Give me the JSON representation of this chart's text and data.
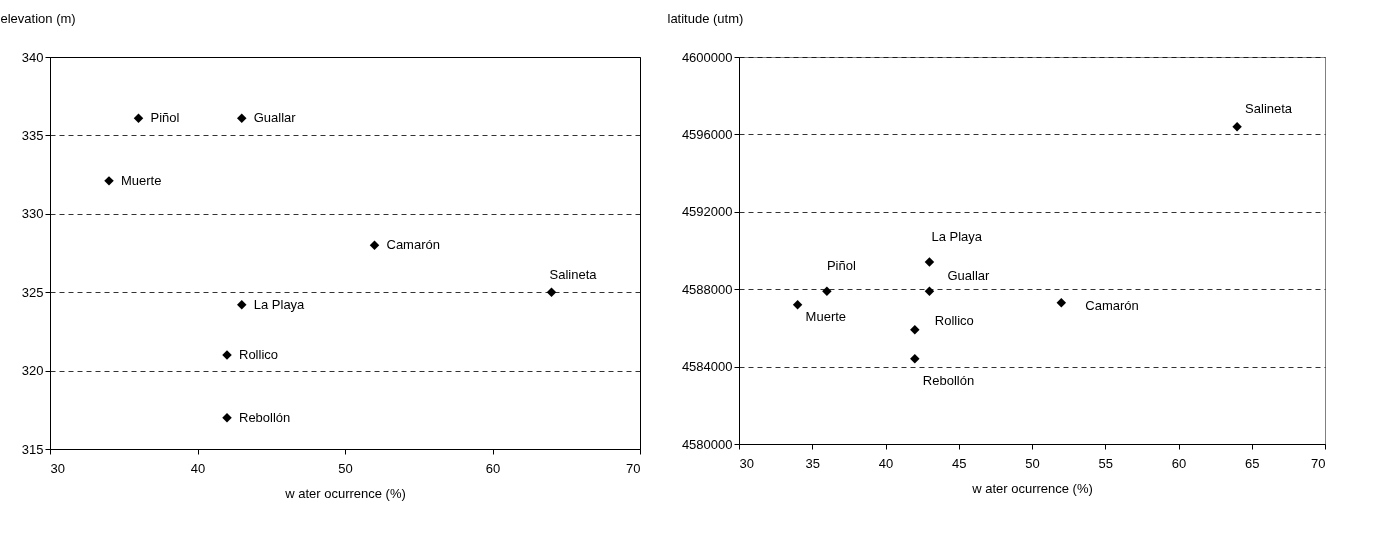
{
  "chart_data": [
    {
      "type": "scatter",
      "xlabel": "w ater ocurrence (%)",
      "ylabel": "elevation (m)",
      "x": [
        36,
        43,
        34,
        52,
        64,
        43,
        42,
        42
      ],
      "series": [
        {
          "color": "#000000",
          "values": [
            336.1,
            336.1,
            332.1,
            328,
            325,
            324.2,
            321,
            317
          ]
        }
      ],
      "xlim": [
        30,
        70
      ],
      "xticks": [
        30,
        40,
        50,
        60,
        70
      ],
      "ylim": [
        315,
        340
      ],
      "yticks": [
        315,
        320,
        325,
        330,
        335,
        340
      ],
      "grid": "y",
      "marker": "diamond",
      "annotations": [
        {
          "text": "Piñol",
          "x": 36,
          "y": 336.1
        },
        {
          "text": "Guallar",
          "x": 43,
          "y": 336.1
        },
        {
          "text": "Muerte",
          "x": 34,
          "y": 332.1
        },
        {
          "text": "Camarón",
          "x": 52,
          "y": 328
        },
        {
          "text": "Salineta",
          "x": 64,
          "y": 325
        },
        {
          "text": "La Playa",
          "x": 43,
          "y": 324.2
        },
        {
          "text": "Rollico",
          "x": 42,
          "y": 321
        },
        {
          "text": "Rebollón",
          "x": 42,
          "y": 317
        }
      ]
    },
    {
      "type": "scatter",
      "xlabel": "w ater ocurrence (%)",
      "ylabel": "latitude  (utm)",
      "x": [
        36,
        43,
        34,
        52,
        64,
        43,
        42,
        42
      ],
      "series": [
        {
          "color": "#000000",
          "values": [
            4587900,
            4587900,
            4587200,
            4587300,
            4596400,
            4589400,
            4585900,
            4584400
          ]
        }
      ],
      "xlim": [
        30,
        70
      ],
      "xticks": [
        30,
        35,
        40,
        45,
        50,
        55,
        60,
        65,
        70
      ],
      "ylim": [
        4580000,
        4600000
      ],
      "yticks": [
        4580000,
        4584000,
        4588000,
        4592000,
        4596000,
        4600000
      ],
      "grid": "y",
      "marker": "diamond",
      "annotations": [
        {
          "text": "Piñol",
          "x": 36,
          "y": 4587900
        },
        {
          "text": "Guallar",
          "x": 43,
          "y": 4587900
        },
        {
          "text": "Muerte",
          "x": 34,
          "y": 4587200
        },
        {
          "text": "Camarón",
          "x": 52,
          "y": 4587300
        },
        {
          "text": "Salineta",
          "x": 64,
          "y": 4596400
        },
        {
          "text": "La Playa",
          "x": 43,
          "y": 4589400
        },
        {
          "text": "Rollico",
          "x": 42,
          "y": 4585900
        },
        {
          "text": "Rebollón",
          "x": 42,
          "y": 4584400
        }
      ]
    }
  ]
}
